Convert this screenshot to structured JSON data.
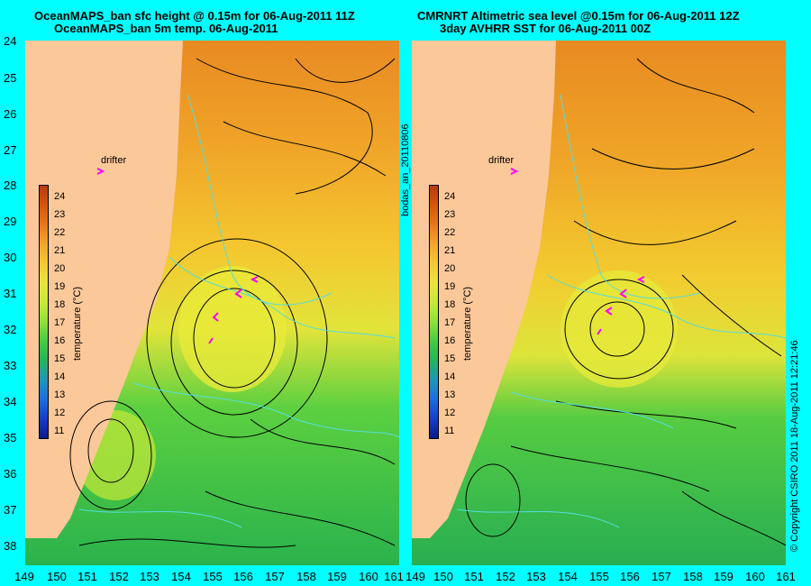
{
  "left": {
    "title_line1": "OceanMAPS_ban sfc height @ 0.15m for 06-Aug-2011 11Z",
    "title_line2": "OceanMAPS_ban 5m temp. 06-Aug-2011"
  },
  "right": {
    "title_line1": "CMRNRT Altimetric sea level  @0.15m  for 06-Aug-2011 12Z",
    "title_line2": "3day AVHRR SST for 06-Aug-2011 00Z"
  },
  "drifter_label": "drifter",
  "y_ticks": [
    "24",
    "25",
    "26",
    "27",
    "28",
    "29",
    "30",
    "31",
    "32",
    "33",
    "34",
    "35",
    "36",
    "37",
    "38"
  ],
  "x_ticks": [
    "149",
    "150",
    "151",
    "152",
    "153",
    "154",
    "155",
    "156",
    "157",
    "158",
    "159",
    "160",
    "161"
  ],
  "colorbar": {
    "title": "temperature (°C)",
    "ticks": [
      "24",
      "23",
      "22",
      "21",
      "20",
      "19",
      "18",
      "17",
      "16",
      "15",
      "14",
      "13",
      "12",
      "11"
    ],
    "colors": [
      "#b83a10",
      "#d4560a",
      "#e8781a",
      "#f2a52a",
      "#f6c832",
      "#eae43a",
      "#c6ea38",
      "#8ee23a",
      "#46cc40",
      "#22b45c",
      "#1f96b8",
      "#1c6ee0",
      "#143ec8",
      "#0a1a8e"
    ]
  },
  "side_label_mid": "bodas_an_20110806",
  "side_label_right": "© Copyright CSIRO 2011   18-Aug-2011 12:21:46"
}
